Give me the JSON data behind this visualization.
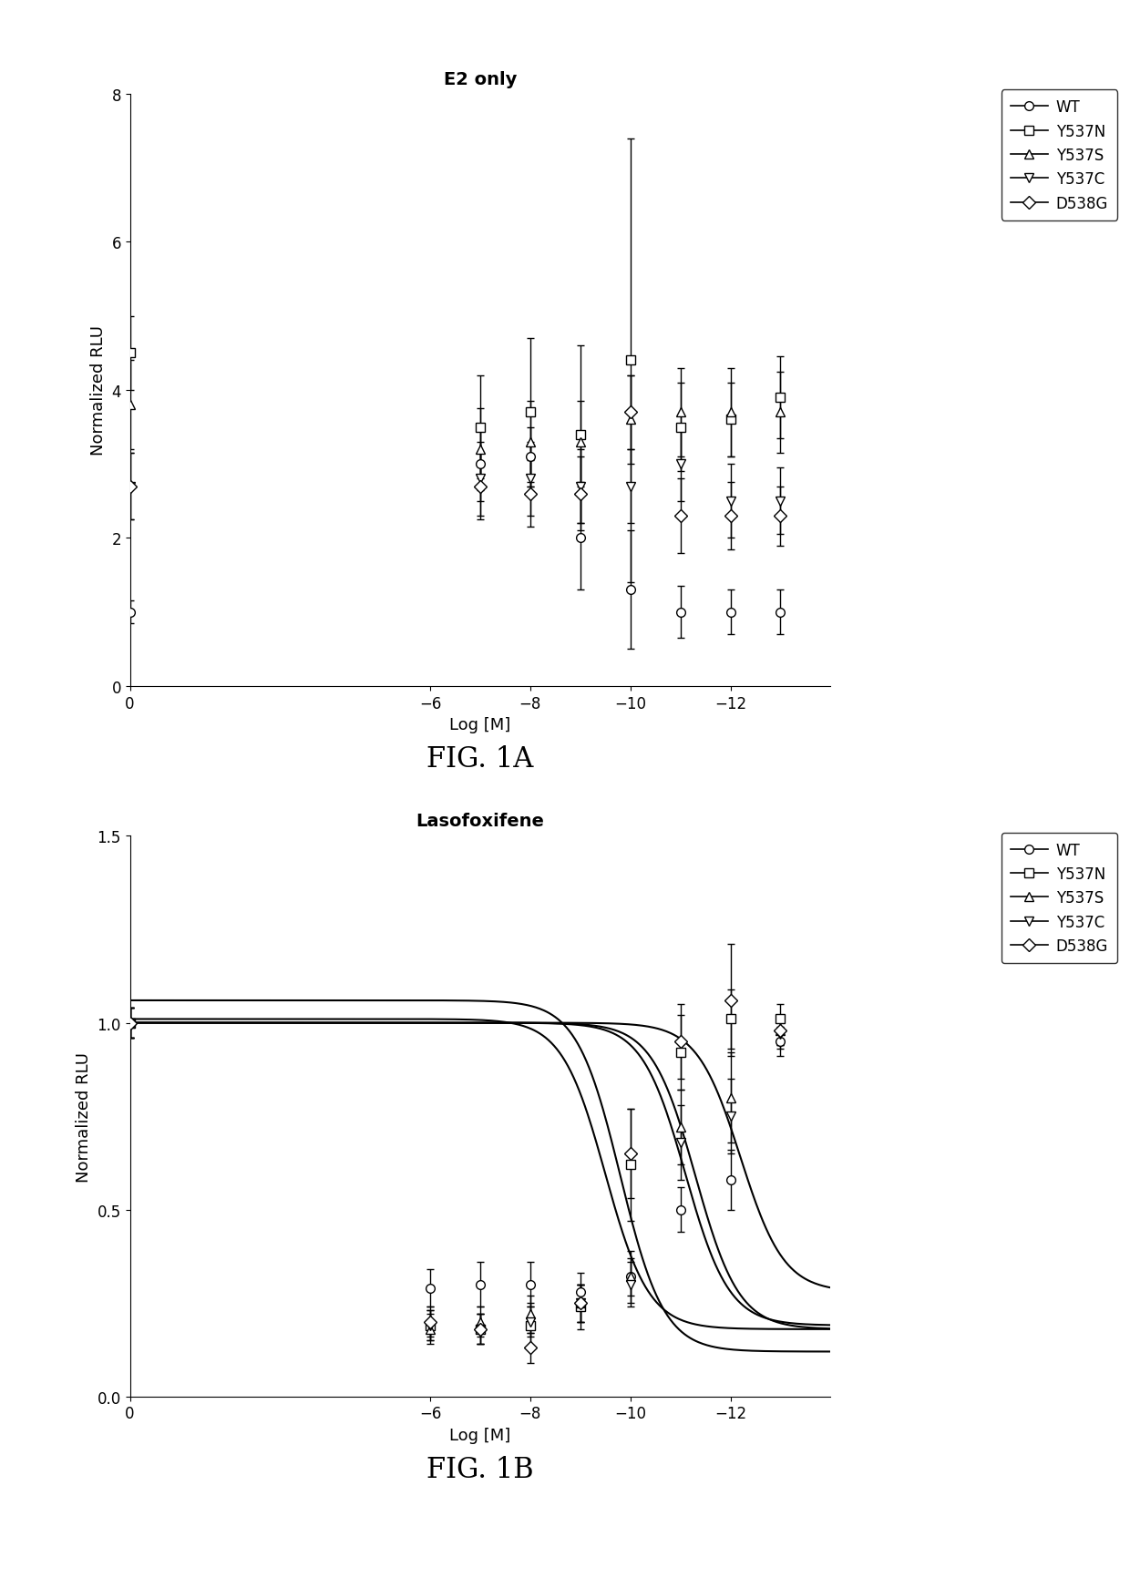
{
  "fig1a": {
    "title": "E2 only",
    "xlabel": "Log [M]",
    "ylabel": "Normalized RLU",
    "xlim": [
      0,
      -14
    ],
    "ylim": [
      0,
      8
    ],
    "yticks": [
      0,
      2,
      4,
      6,
      8
    ],
    "xticks": [
      0,
      -12,
      -10,
      -8,
      -6
    ],
    "series": {
      "WT": {
        "x": [
          0,
          -13,
          -12,
          -11,
          -10,
          -9,
          -8,
          -7
        ],
        "y": [
          1.0,
          1.0,
          1.0,
          1.0,
          1.3,
          2.0,
          3.1,
          3.0
        ],
        "yerr": [
          0.15,
          0.3,
          0.3,
          0.35,
          0.8,
          0.7,
          0.4,
          0.5
        ]
      },
      "Y537N": {
        "x": [
          0,
          -13,
          -12,
          -11,
          -10,
          -9,
          -8,
          -7
        ],
        "y": [
          4.5,
          3.9,
          3.6,
          3.5,
          4.4,
          3.4,
          3.7,
          3.5
        ],
        "yerr": [
          0.5,
          0.55,
          0.5,
          0.6,
          3.0,
          1.2,
          1.0,
          0.7
        ]
      },
      "Y537S": {
        "x": [
          0,
          -13,
          -12,
          -11,
          -10,
          -9,
          -8,
          -7
        ],
        "y": [
          3.8,
          3.7,
          3.7,
          3.7,
          3.6,
          3.3,
          3.3,
          3.2
        ],
        "yerr": [
          0.6,
          0.55,
          0.6,
          0.6,
          0.6,
          0.55,
          0.55,
          0.55
        ]
      },
      "Y537C": {
        "x": [
          0,
          -13,
          -12,
          -11,
          -10,
          -9,
          -8,
          -7
        ],
        "y": [
          2.7,
          2.5,
          2.5,
          3.0,
          2.7,
          2.7,
          2.8,
          2.8
        ],
        "yerr": [
          0.45,
          0.45,
          0.5,
          0.5,
          0.5,
          0.5,
          0.5,
          0.5
        ]
      },
      "D538G": {
        "x": [
          0,
          -13,
          -12,
          -11,
          -10,
          -9,
          -8,
          -7
        ],
        "y": [
          2.7,
          2.3,
          2.3,
          2.3,
          3.7,
          2.6,
          2.6,
          2.7
        ],
        "yerr": [
          0.45,
          0.4,
          0.45,
          0.5,
          0.5,
          0.5,
          0.45,
          0.45
        ]
      }
    }
  },
  "fig1b": {
    "title": "Lasofoxifene",
    "xlabel": "Log [M]",
    "ylabel": "Normalized RLU",
    "xlim": [
      0,
      -14
    ],
    "ylim": [
      0,
      1.5
    ],
    "yticks": [
      0.0,
      0.5,
      1.0,
      1.5
    ],
    "xticks": [
      0,
      -12,
      -10,
      -8,
      -6
    ],
    "series": {
      "WT": {
        "x": [
          0,
          -13,
          -12,
          -11,
          -10,
          -9,
          -8,
          -7,
          -6
        ],
        "y": [
          1.0,
          0.95,
          0.58,
          0.5,
          0.32,
          0.28,
          0.3,
          0.3,
          0.29
        ],
        "yerr": [
          0.04,
          0.04,
          0.08,
          0.06,
          0.05,
          0.05,
          0.06,
          0.06,
          0.05
        ],
        "ec50": -12.2,
        "bottom": 0.28,
        "top": 1.0
      },
      "Y537N": {
        "x": [
          0,
          -13,
          -12,
          -11,
          -10,
          -9,
          -8,
          -7,
          -6
        ],
        "y": [
          1.0,
          1.01,
          1.01,
          0.92,
          0.62,
          0.24,
          0.19,
          0.18,
          0.19
        ],
        "yerr": [
          0.04,
          0.04,
          0.08,
          0.1,
          0.15,
          0.06,
          0.06,
          0.04,
          0.04
        ],
        "ec50": -9.5,
        "bottom": 0.18,
        "top": 1.01
      },
      "Y537S": {
        "x": [
          0,
          -13,
          -12,
          -11,
          -10,
          -9,
          -8,
          -7,
          -6
        ],
        "y": [
          1.0,
          0.98,
          0.8,
          0.72,
          0.32,
          0.25,
          0.22,
          0.2,
          0.18
        ],
        "yerr": [
          0.04,
          0.04,
          0.12,
          0.1,
          0.07,
          0.05,
          0.05,
          0.04,
          0.04
        ],
        "ec50": -11.1,
        "bottom": 0.19,
        "top": 1.0
      },
      "Y537C": {
        "x": [
          0,
          -13,
          -12,
          -11,
          -10,
          -9,
          -8,
          -7,
          -6
        ],
        "y": [
          1.0,
          0.97,
          0.75,
          0.68,
          0.3,
          0.25,
          0.2,
          0.18,
          0.19
        ],
        "yerr": [
          0.04,
          0.04,
          0.1,
          0.1,
          0.06,
          0.05,
          0.04,
          0.04,
          0.04
        ],
        "ec50": -11.3,
        "bottom": 0.18,
        "top": 1.0
      },
      "D538G": {
        "x": [
          0,
          -13,
          -12,
          -11,
          -10,
          -9,
          -8,
          -7,
          -6
        ],
        "y": [
          1.0,
          0.98,
          1.06,
          0.95,
          0.65,
          0.25,
          0.13,
          0.18,
          0.2
        ],
        "yerr": [
          0.04,
          0.04,
          0.15,
          0.1,
          0.12,
          0.05,
          0.04,
          0.04,
          0.04
        ],
        "ec50": -9.8,
        "bottom": 0.12,
        "top": 1.06
      }
    }
  },
  "legend_order": [
    "WT",
    "Y537N",
    "Y537S",
    "Y537C",
    "D538G"
  ],
  "markers": {
    "WT": "o",
    "Y537N": "s",
    "Y537S": "^",
    "Y537C": "v",
    "D538G": "D"
  },
  "fig1a_label": "FIG. 1A",
  "fig1b_label": "FIG. 1B",
  "background_color": "#ffffff"
}
